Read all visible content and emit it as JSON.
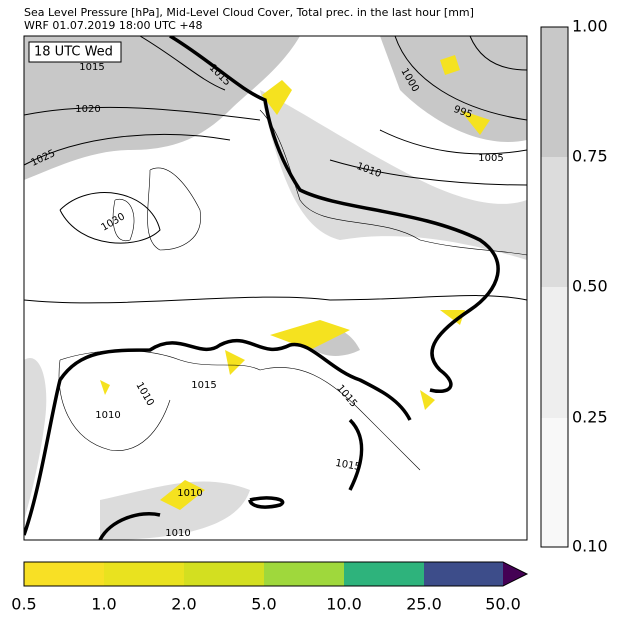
{
  "header": {
    "title": "Sea Level Pressure [hPa], Mid-Level Cloud Cover, Total prec. in the last hour [mm]",
    "subtitle": "WRF 01.07.2019 18:00 UTC +48"
  },
  "map": {
    "time_label": "18 UTC Wed",
    "contour_labels": [
      "1015",
      "1015",
      "1020",
      "1025",
      "1030",
      "1000",
      "995",
      "1010",
      "1005",
      "1015",
      "1010",
      "1010",
      "1015",
      "1015",
      "1010",
      "1010"
    ]
  },
  "cloud_colorbar": {
    "ticks": [
      "1.00",
      "0.75",
      "0.50",
      "0.25",
      "0.10"
    ]
  },
  "precip_colorbar": {
    "ticks": [
      "0.5",
      "1.0",
      "2.0",
      "5.0",
      "10.0",
      "25.0",
      "50.0"
    ]
  }
}
